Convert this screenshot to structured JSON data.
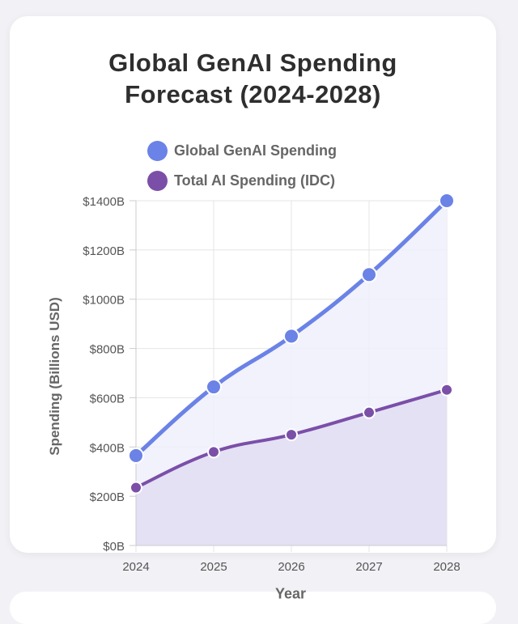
{
  "chart_data": {
    "type": "line",
    "title": [
      "Global GenAI Spending",
      "Forecast (2024-2028)"
    ],
    "xlabel": "Year",
    "ylabel": "Spending (Billions USD)",
    "x": [
      "2024",
      "2025",
      "2026",
      "2027",
      "2028"
    ],
    "ylim": [
      0,
      1400
    ],
    "yticks": [
      "$0B",
      "$200B",
      "$400B",
      "$600B",
      "$800B",
      "$1000B",
      "$1200B",
      "$1400B"
    ],
    "grid": true,
    "legend_position": "top",
    "series": [
      {
        "name": "Global GenAI Spending",
        "values": [
          365,
          644,
          850,
          1100,
          1400
        ],
        "color": "#6b82e6",
        "fill": "#eef0fc"
      },
      {
        "name": "Total AI Spending (IDC)",
        "values": [
          235,
          380,
          450,
          540,
          632
        ],
        "color": "#7b4fa8",
        "fill": "#e2def3"
      }
    ]
  }
}
